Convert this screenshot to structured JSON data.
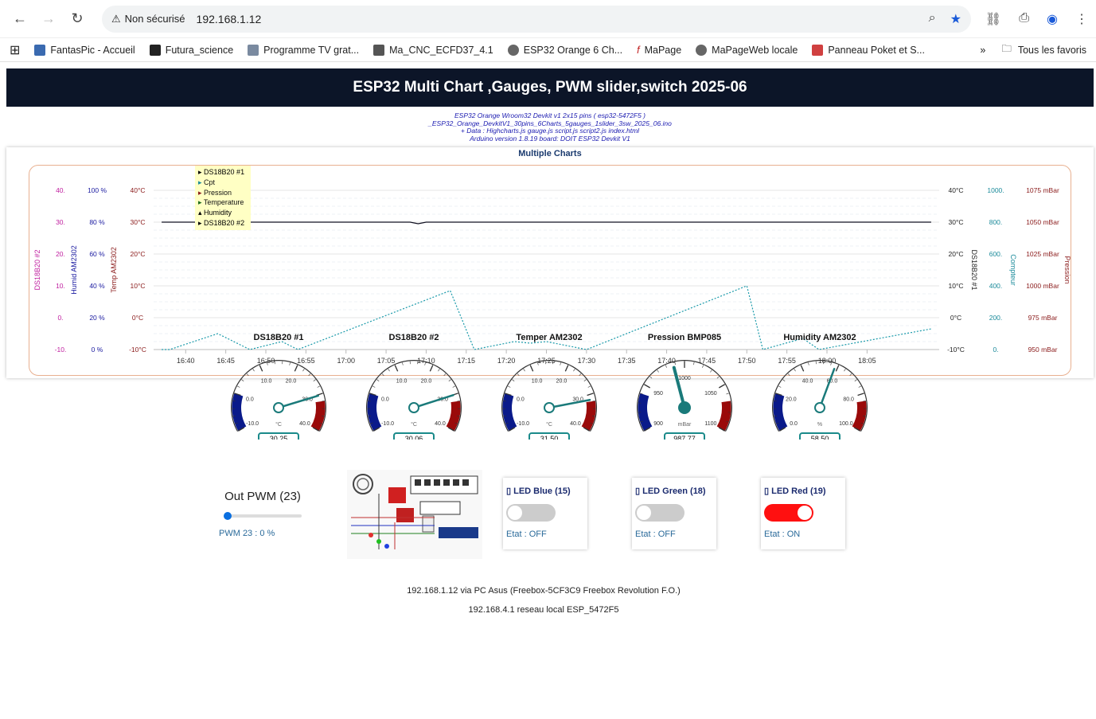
{
  "browser": {
    "security_label": "Non sécurisé",
    "url": "192.168.1.12",
    "bookmarks": [
      "FantasPic - Accueil",
      "Futura_science",
      "Programme TV grat...",
      "Ma_CNC_ECFD37_4.1",
      "ESP32 Orange 6 Ch...",
      "MaPage",
      "MaPageWeb locale",
      "Panneau Poket et S..."
    ],
    "all_bookmarks": "Tous les favoris"
  },
  "header": {
    "title": "ESP32 Multi Chart ,Gauges, PWM slider,switch 2025-06",
    "info_lines": [
      "ESP32 Orange Wroom32 Devkit v1  2x15 pins ( esp32-5472F5 )",
      "_ESP32_Orange_DevkitV1_30pins_6Charts_5gauges_1slider_3sw_2025_06.ino",
      "+ Data : Highcharts.js gauge.js script.js script2.js index.html",
      "Arduino version 1.8.19 board: DOIT ESP32 Devkit V1"
    ]
  },
  "chart_data": {
    "type": "line",
    "title": "Multiple Charts",
    "x_ticks": [
      "16:40",
      "16:45",
      "16:50",
      "16:55",
      "17:00",
      "17:05",
      "17:10",
      "17:15",
      "17:20",
      "17:25",
      "17:30",
      "17:35",
      "17:40",
      "17:45",
      "17:50",
      "17:55",
      "18:00",
      "18:05"
    ],
    "left_axes": [
      {
        "label": "DS18B20 #2",
        "ticks": [
          "40.",
          "30.",
          "20.",
          "10.",
          "0.",
          "-10."
        ],
        "color": "#c020a0"
      },
      {
        "label": "Humid AM2302",
        "ticks": [
          "100 %",
          "80 %",
          "60 %",
          "40 %",
          "20 %",
          "0 %"
        ],
        "color": "#1a1aa0"
      },
      {
        "label": "Temp AM2302",
        "ticks": [
          "40°C",
          "30°C",
          "20°C",
          "10°C",
          "0°C",
          "-10°C"
        ],
        "color": "#8a1a1a"
      }
    ],
    "right_axes": [
      {
        "label": "DS18B20 #1",
        "ticks": [
          "40°C",
          "30°C",
          "20°C",
          "10°C",
          "0°C",
          "-10°C"
        ],
        "color": "#222"
      },
      {
        "label": "Compteur",
        "ticks": [
          "1000.",
          "800.",
          "600.",
          "400.",
          "200.",
          "0."
        ],
        "color": "#1a8a9a"
      },
      {
        "label": "Pression",
        "ticks": [
          "1075 mBar",
          "1050 mBar",
          "1025 mBar",
          "1000 mBar",
          "975 mBar",
          "950 mBar"
        ],
        "color": "#8a1a1a"
      }
    ],
    "legend": [
      "DS18B20 #1",
      "Cpt",
      "Pression",
      "Temperature",
      "Humidity",
      "DS18B20 #2"
    ],
    "series": [
      {
        "name": "DS18B20 #1",
        "axis": "°C",
        "x": [
          "16:37",
          "17:08",
          "17:09",
          "17:10",
          "18:13"
        ],
        "y": [
          30,
          30,
          29.5,
          30,
          30
        ]
      },
      {
        "name": "Cpt",
        "axis": "Compteur",
        "x": [
          "16:37",
          "16:38",
          "16:44",
          "16:48",
          "16:52",
          "16:54",
          "17:13",
          "17:16",
          "17:21",
          "17:23",
          "17:25",
          "17:30",
          "17:50",
          "17:52",
          "17:57",
          "17:59",
          "18:13"
        ],
        "y": [
          0,
          0,
          100,
          0,
          50,
          0,
          370,
          0,
          50,
          40,
          50,
          0,
          400,
          0,
          70,
          0,
          130
        ]
      }
    ]
  },
  "gauges": [
    {
      "title": "DS18B20 #1",
      "unit": "°C",
      "value": "30.25",
      "ticks": [
        "-10.0",
        "0.0",
        "10.0",
        "20.0",
        "30.0",
        "40.0"
      ],
      "min": -10,
      "max": 40,
      "v": 30.25
    },
    {
      "title": "DS18B20 #2",
      "unit": "°C",
      "value": "30.06",
      "ticks": [
        "-10.0",
        "0.0",
        "10.0",
        "20.0",
        "30.0",
        "40.0"
      ],
      "min": -10,
      "max": 40,
      "v": 30.06
    },
    {
      "title": "Temper AM2302",
      "unit": "°C",
      "value": "31.50",
      "ticks": [
        "-10.0",
        "0.0",
        "10.0",
        "20.0",
        "30.0",
        "40.0"
      ],
      "min": -10,
      "max": 40,
      "v": 31.5
    },
    {
      "title": "Pression BMP085",
      "unit": "mBar",
      "value": "987.77",
      "ticks": [
        "900",
        "950",
        "1000",
        "1050",
        "1100"
      ],
      "min": 900,
      "max": 1100,
      "v": 987.77
    },
    {
      "title": "Humidity AM2302",
      "unit": "%",
      "value": "58.50",
      "ticks": [
        "0.0",
        "20.0",
        "40.0",
        "60.0",
        "80.0",
        "100.0"
      ],
      "min": 0,
      "max": 100,
      "v": 58.5
    }
  ],
  "pwm": {
    "label": "Out PWM (23)",
    "value_text": "PWM 23 : 0 %",
    "level": 0
  },
  "switches": [
    {
      "title": "LED Blue  (15)",
      "state": "Etat : OFF",
      "on": false
    },
    {
      "title": "LED Green (18)",
      "state": "Etat : OFF",
      "on": false
    },
    {
      "title": "LED Red (19)",
      "state": "Etat  : ON",
      "on": true
    }
  ],
  "colors": {
    "accent": "#0c1528",
    "toggle_on": "#ff1010",
    "teal": "#1a8a8a"
  },
  "footer": {
    "line1": "192.168.1.12 via PC Asus (Freebox-5CF3C9 Freebox Revolution F.O.)",
    "line2": "192.168.4.1 reseau local ESP_5472F5"
  }
}
